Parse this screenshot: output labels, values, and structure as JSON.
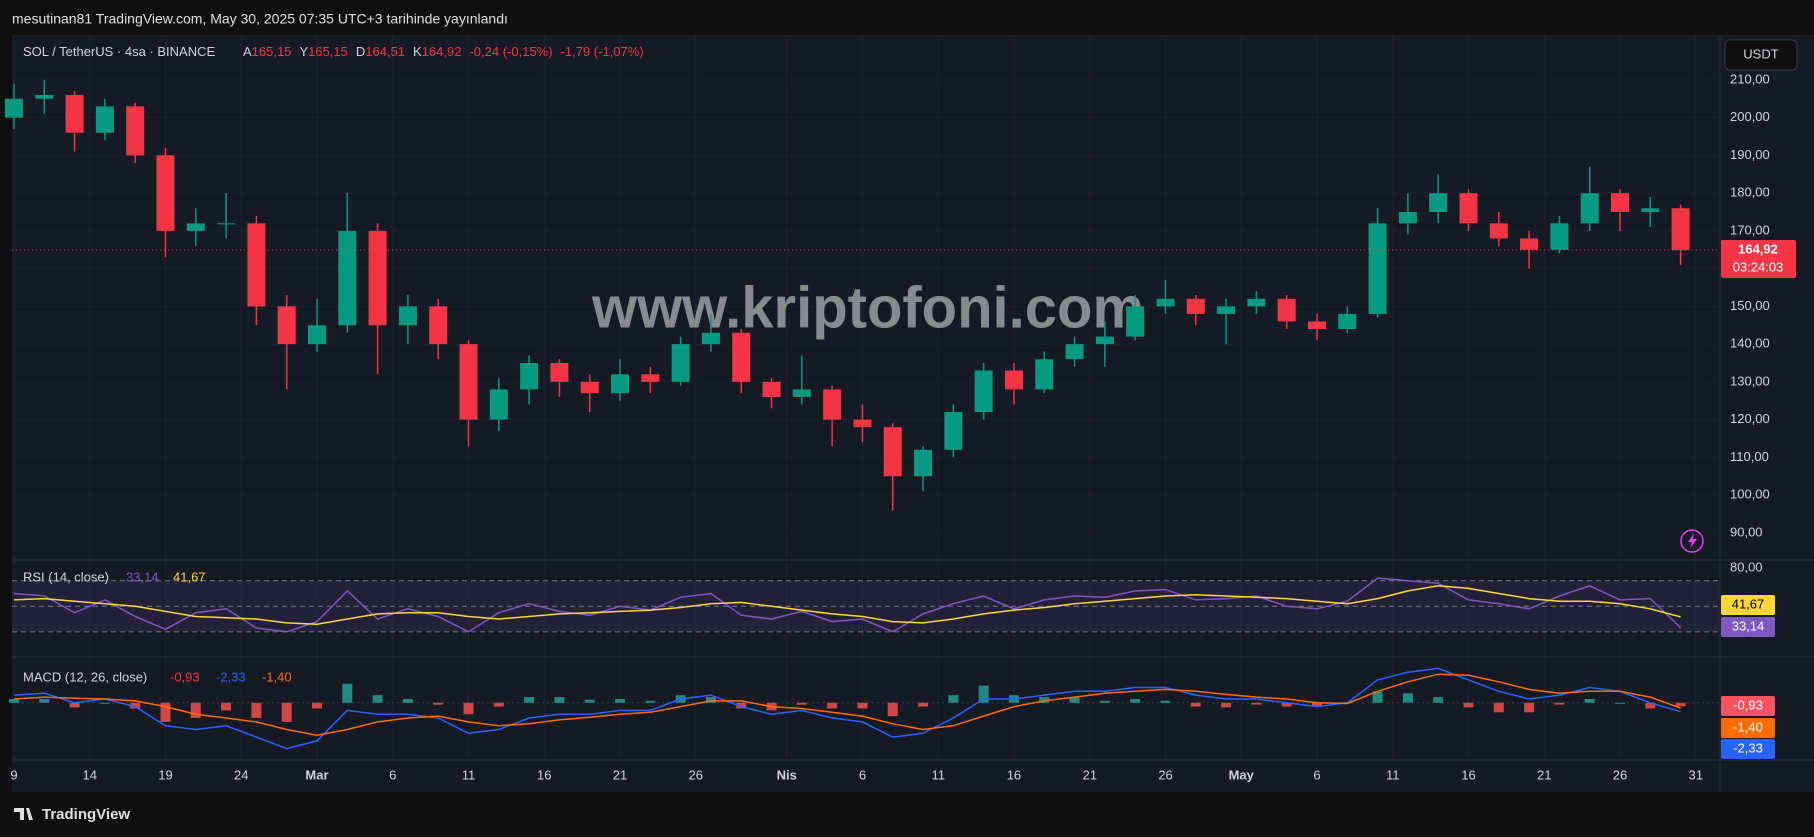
{
  "page": {
    "published": "mesutinan81 TradingView.com, May 30, 2025 07:35 UTC+3 tarihinde yayınlandı",
    "currency": "USDT",
    "watermark": "www.kriptofoni.com",
    "brand": "TradingView"
  },
  "chart_data": [
    {
      "type": "candlestick",
      "header": {
        "symbol": "SOL / TetherUS · 4sa · BINANCE",
        "fields": [
          [
            "A",
            "165,15"
          ],
          [
            "Y",
            "165,15"
          ],
          [
            "D",
            "164,51"
          ],
          [
            "K",
            "164,92"
          ]
        ],
        "change": "-0,24 (-0,15%)",
        "change2": "-1,79 (-1,07%)"
      },
      "up_color": "#089981",
      "down_color": "#f23645",
      "x": [
        0,
        2,
        4,
        6,
        8,
        10,
        12,
        14,
        16,
        18,
        20,
        22,
        24,
        26,
        28,
        30,
        32,
        34,
        36,
        38,
        40,
        42,
        44,
        46,
        48,
        50,
        52,
        54,
        56,
        58,
        60,
        62,
        64,
        66,
        68,
        70,
        72,
        74,
        76,
        78,
        80,
        82,
        84,
        86,
        88,
        90,
        92,
        94,
        96,
        98,
        100,
        102,
        104,
        106,
        108,
        110
      ],
      "ohlc": [
        [
          200,
          209,
          197,
          205
        ],
        [
          205,
          210,
          201,
          206
        ],
        [
          206,
          207,
          191,
          196
        ],
        [
          196,
          205,
          194,
          203
        ],
        [
          203,
          204,
          188,
          190
        ],
        [
          190,
          192,
          163,
          170
        ],
        [
          170,
          176,
          166,
          172
        ],
        [
          172,
          180,
          168,
          172
        ],
        [
          172,
          174,
          145,
          150
        ],
        [
          150,
          153,
          128,
          140
        ],
        [
          140,
          152,
          138,
          145
        ],
        [
          145,
          180,
          143,
          170
        ],
        [
          170,
          172,
          132,
          145
        ],
        [
          145,
          153,
          140,
          150
        ],
        [
          150,
          152,
          136,
          140
        ],
        [
          140,
          141,
          113,
          120
        ],
        [
          120,
          131,
          117,
          128
        ],
        [
          128,
          137,
          124,
          135
        ],
        [
          135,
          136,
          126,
          130
        ],
        [
          130,
          132,
          122,
          127
        ],
        [
          127,
          136,
          125,
          132
        ],
        [
          132,
          134,
          127,
          130
        ],
        [
          130,
          142,
          129,
          140
        ],
        [
          140,
          148,
          138,
          143
        ],
        [
          143,
          144,
          127,
          130
        ],
        [
          130,
          131,
          123,
          126
        ],
        [
          126,
          137,
          124,
          128
        ],
        [
          128,
          129,
          113,
          120
        ],
        [
          120,
          124,
          114,
          118
        ],
        [
          118,
          119,
          96,
          105
        ],
        [
          105,
          113,
          101,
          112
        ],
        [
          112,
          124,
          110,
          122
        ],
        [
          122,
          135,
          120,
          133
        ],
        [
          133,
          135,
          124,
          128
        ],
        [
          128,
          138,
          127,
          136
        ],
        [
          136,
          142,
          134,
          140
        ],
        [
          140,
          146,
          134,
          142
        ],
        [
          142,
          153,
          141,
          150
        ],
        [
          150,
          157,
          148,
          152
        ],
        [
          152,
          153,
          145,
          148
        ],
        [
          148,
          152,
          140,
          150
        ],
        [
          150,
          154,
          148,
          152
        ],
        [
          152,
          153,
          144,
          146
        ],
        [
          146,
          148,
          141,
          144
        ],
        [
          144,
          150,
          143,
          148
        ],
        [
          148,
          176,
          147,
          172
        ],
        [
          172,
          180,
          169,
          175
        ],
        [
          175,
          185,
          172,
          180
        ],
        [
          180,
          181,
          170,
          172
        ],
        [
          172,
          175,
          166,
          168
        ],
        [
          168,
          170,
          160,
          165
        ],
        [
          165,
          174,
          164,
          172
        ],
        [
          172,
          187,
          170,
          180
        ],
        [
          180,
          181,
          170,
          175
        ],
        [
          175,
          179,
          171,
          176
        ],
        [
          176,
          177,
          161,
          164.92
        ]
      ],
      "last_price": {
        "value": 164.92,
        "label": "164,92"
      },
      "countdown": "03:24:03",
      "xlim": [
        -0.13,
        112.6
      ],
      "ylim": [
        82.8,
        221.9
      ],
      "xticks": [
        {
          "value": 0,
          "label": "9"
        },
        {
          "value": 5,
          "label": "14"
        },
        {
          "value": 10,
          "label": "19"
        },
        {
          "value": 15,
          "label": "24"
        },
        {
          "value": 20,
          "label": "Mar"
        },
        {
          "value": 25,
          "label": "6"
        },
        {
          "value": 30,
          "label": "11"
        },
        {
          "value": 35,
          "label": "16"
        },
        {
          "value": 40,
          "label": "21"
        },
        {
          "value": 45,
          "label": "26"
        },
        {
          "value": 51,
          "label": "Nis"
        },
        {
          "value": 56,
          "label": "6"
        },
        {
          "value": 61,
          "label": "11"
        },
        {
          "value": 66,
          "label": "16"
        },
        {
          "value": 71,
          "label": "21"
        },
        {
          "value": 76,
          "label": "26"
        },
        {
          "value": 81,
          "label": "May"
        },
        {
          "value": 86,
          "label": "6"
        },
        {
          "value": 91,
          "label": "11"
        },
        {
          "value": 96,
          "label": "16"
        },
        {
          "value": 101,
          "label": "21"
        },
        {
          "value": 106,
          "label": "26"
        },
        {
          "value": 111,
          "label": "31"
        }
      ],
      "yticks": [
        {
          "value": 90,
          "label": "90,00"
        },
        {
          "value": 100,
          "label": "100,00"
        },
        {
          "value": 110,
          "label": "110,00"
        },
        {
          "value": 120,
          "label": "120,00"
        },
        {
          "value": 130,
          "label": "130,00"
        },
        {
          "value": 140,
          "label": "140,00"
        },
        {
          "value": 150,
          "label": "150,00"
        },
        {
          "value": 160,
          "label": "160,00"
        },
        {
          "value": 170,
          "label": "170,00"
        },
        {
          "value": 180,
          "label": "180,00"
        },
        {
          "value": 190,
          "label": "190,00"
        },
        {
          "value": 200,
          "label": "200,00"
        },
        {
          "value": 210,
          "label": "210,00"
        }
      ],
      "grid": true
    },
    {
      "type": "line",
      "title": "RSI (14, close)",
      "ylim": [
        10.3,
        86.2
      ],
      "yticks": [
        {
          "value": 80,
          "label": "80,00"
        }
      ],
      "levels": [
        70,
        50,
        30
      ],
      "series": [
        {
          "color": "#7e57c2",
          "last_label": "33,14",
          "values": [
            60,
            58,
            45,
            55,
            42,
            32,
            45,
            48,
            33,
            30,
            38,
            62,
            40,
            48,
            42,
            30,
            45,
            52,
            46,
            43,
            50,
            47,
            57,
            60,
            43,
            40,
            46,
            38,
            40,
            30,
            44,
            52,
            58,
            48,
            55,
            58,
            57,
            62,
            63,
            55,
            56,
            58,
            50,
            48,
            54,
            72,
            70,
            68,
            55,
            52,
            48,
            58,
            66,
            55,
            56,
            33.14
          ]
        },
        {
          "color": "#fdd835",
          "last_label": "41,67",
          "values": [
            55,
            56,
            54,
            52,
            50,
            46,
            42,
            41,
            40,
            37,
            36,
            40,
            44,
            45,
            45,
            42,
            40,
            42,
            44,
            45,
            46,
            47,
            49,
            52,
            53,
            50,
            47,
            44,
            42,
            38,
            37,
            40,
            44,
            47,
            49,
            52,
            54,
            56,
            58,
            59,
            58,
            57,
            56,
            54,
            52,
            56,
            62,
            66,
            64,
            60,
            56,
            54,
            54,
            52,
            48,
            41.67
          ]
        }
      ]
    },
    {
      "type": "macd",
      "title": "MACD (12, 26, close)",
      "ylim": [
        -15,
        12
      ],
      "series": [
        {
          "kind": "histogram",
          "up_color": "#26a69a",
          "down_color": "#ff5252",
          "last_label": "-0,93",
          "values": [
            1,
            1,
            -1.2,
            0,
            -1.5,
            -5,
            -4,
            -2,
            -4,
            -5,
            -1.5,
            5,
            2,
            1,
            -0.5,
            -3,
            -1,
            1.5,
            1.5,
            0.8,
            1,
            0.5,
            2,
            1.5,
            -1.5,
            -2,
            -0.5,
            -1.5,
            -1.5,
            -3.5,
            -1,
            2,
            4.5,
            2,
            1.5,
            1.5,
            0.5,
            1,
            0.5,
            -1,
            -1.2,
            -0.5,
            -1,
            -1,
            0.2,
            3,
            2.5,
            1.5,
            -1.2,
            -2.5,
            -2.5,
            -0.5,
            1,
            0,
            -1.5,
            -0.93
          ]
        },
        {
          "kind": "line",
          "color": "#2962ff",
          "last_label": "-2,33",
          "values": [
            2,
            2.5,
            0,
            1,
            -1,
            -6,
            -7,
            -6,
            -9,
            -12,
            -10,
            -2,
            -3,
            -3,
            -4,
            -8,
            -7,
            -4,
            -3,
            -3,
            -2,
            -2,
            1,
            2,
            -1,
            -3,
            -2,
            -4,
            -5,
            -9,
            -8,
            -4,
            1,
            1,
            2,
            3,
            3,
            4,
            4,
            2,
            1,
            1,
            0,
            -1,
            0,
            6,
            8,
            9,
            6,
            3,
            1,
            2,
            4,
            3,
            0,
            -2.33
          ]
        },
        {
          "kind": "line",
          "color": "#ff6d00",
          "last_label": "-1,40",
          "values": [
            1,
            1.5,
            1.2,
            1,
            0.5,
            -1,
            -3,
            -4,
            -5,
            -7,
            -8.5,
            -7,
            -5,
            -4,
            -3.5,
            -5,
            -6,
            -5.5,
            -4.5,
            -3.8,
            -3,
            -2.5,
            -1,
            0.5,
            0.5,
            -1,
            -1.5,
            -2.5,
            -3.5,
            -5.5,
            -7,
            -6,
            -3.5,
            -1,
            0.5,
            1.5,
            2.5,
            3,
            3.5,
            3,
            2.2,
            1.5,
            1,
            0,
            -0.2,
            3,
            5.5,
            7.5,
            7.2,
            5.5,
            3.5,
            2.5,
            3,
            3,
            1.5,
            -1.4
          ]
        }
      ]
    }
  ]
}
